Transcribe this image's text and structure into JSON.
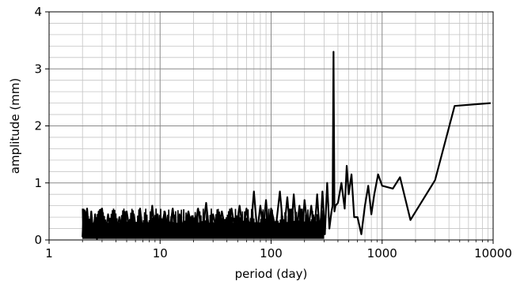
{
  "chart_data": {
    "type": "line",
    "title": "",
    "xlabel": "period (day)",
    "ylabel": "amplitude (mm)",
    "xscale": "log",
    "xlim": [
      1,
      10000
    ],
    "ylim": [
      0,
      4
    ],
    "grid": true,
    "grid_minor_x": true,
    "grid_minor_y": true,
    "line_color": "#000000",
    "xticks": [
      {
        "value": 1,
        "label": "1"
      },
      {
        "value": 10,
        "label": "10"
      },
      {
        "value": 100,
        "label": "100"
      },
      {
        "value": 1000,
        "label": "1000"
      },
      {
        "value": 10000,
        "label": "10000"
      }
    ],
    "yticks": [
      {
        "value": 0,
        "label": "0"
      },
      {
        "value": 1,
        "label": "1"
      },
      {
        "value": 2,
        "label": "2"
      },
      {
        "value": 3,
        "label": "3"
      },
      {
        "value": 4,
        "label": "4"
      }
    ],
    "series": [
      {
        "x": [
          2.0,
          2.05,
          2.1,
          2.2,
          2.3,
          2.4,
          2.5,
          2.6,
          2.7,
          2.8,
          2.9,
          3.0,
          3.2,
          3.4,
          3.6,
          3.8,
          4.0,
          4.3,
          4.6,
          5.0,
          5.4,
          5.8,
          6.2,
          6.6,
          7.0,
          7.5,
          8.0,
          8.5,
          9.0,
          9.5,
          10.0,
          11.0,
          12.0,
          13.0,
          14.0,
          15.0,
          16.5,
          18.0,
          20.0,
          22.0,
          24.0,
          26.0,
          28.0,
          30.0,
          33.0,
          36.0,
          40.0,
          44.0,
          48.0,
          52.0,
          56.0,
          60.0,
          65.0,
          70.0,
          75.0,
          80.0,
          85.0,
          90.0,
          95.0,
          100.0,
          110.0,
          120.0,
          130.0,
          140.0,
          150.0,
          160.0,
          170.0,
          180.0,
          190.0,
          200.0,
          215.0,
          230.0,
          245.0,
          260.0,
          275.0,
          290.0,
          305.0,
          320.0,
          335.0,
          350.0,
          358.0,
          365.0,
          372.0,
          380.0,
          400.0,
          430.0,
          460.0,
          480.0,
          500.0,
          530.0,
          560.0,
          600.0,
          650.0,
          700.0,
          750.0,
          800.0,
          850.0,
          920.0,
          1000.0,
          1250.0,
          1450.0,
          1800.0,
          3000.0,
          4500.0,
          9500.0
        ],
        "y": [
          0.05,
          0.5,
          0.1,
          0.55,
          0.05,
          0.5,
          0.1,
          0.45,
          0.02,
          0.5,
          0.15,
          0.55,
          0.05,
          0.45,
          0.1,
          0.5,
          0.05,
          0.4,
          0.1,
          0.5,
          0.08,
          0.45,
          0.05,
          0.55,
          0.1,
          0.4,
          0.05,
          0.6,
          0.12,
          0.45,
          0.08,
          0.5,
          0.1,
          0.55,
          0.05,
          0.45,
          0.15,
          0.5,
          0.05,
          0.55,
          0.1,
          0.65,
          0.05,
          0.45,
          0.1,
          0.5,
          0.05,
          0.55,
          0.1,
          0.6,
          0.15,
          0.55,
          0.1,
          0.85,
          0.15,
          0.6,
          0.2,
          0.7,
          0.1,
          0.55,
          0.2,
          0.85,
          0.1,
          0.75,
          0.05,
          0.8,
          0.15,
          0.6,
          0.05,
          0.7,
          0.15,
          0.6,
          0.1,
          0.8,
          0.05,
          0.85,
          0.1,
          1.0,
          0.2,
          0.5,
          0.6,
          3.3,
          0.5,
          0.6,
          0.65,
          1.0,
          0.55,
          1.3,
          0.8,
          1.15,
          0.4,
          0.4,
          0.1,
          0.6,
          0.95,
          0.45,
          0.8,
          1.15,
          0.95,
          0.9,
          1.1,
          0.35,
          1.05,
          2.35,
          2.4
        ]
      }
    ]
  }
}
